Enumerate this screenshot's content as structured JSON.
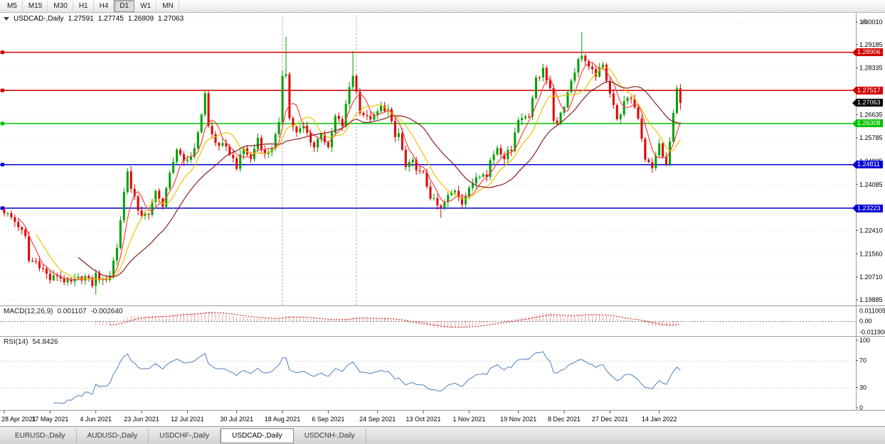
{
  "toolbar": {
    "periods": [
      {
        "label": "M5",
        "active": false
      },
      {
        "label": "M15",
        "active": false
      },
      {
        "label": "M30",
        "active": false
      },
      {
        "label": "H1",
        "active": false
      },
      {
        "label": "H4",
        "active": false
      },
      {
        "label": "D1",
        "active": true
      },
      {
        "label": "W1",
        "active": false
      },
      {
        "label": "MN",
        "active": false
      }
    ]
  },
  "header": {
    "symbol": "USDCAD-,Daily",
    "open": "1.27591",
    "high": "1.27745",
    "low": "1.26809",
    "close": "1.27063"
  },
  "indicators": {
    "macd": {
      "label": "MACD(12,26,9)",
      "value": "0.001107",
      "signal": "-0.002640",
      "axis": [
        "0.011009",
        "0.00",
        "-0.011908"
      ]
    },
    "rsi": {
      "label": "RSI(14)",
      "value": "54.8426",
      "axis": [
        "100",
        "70",
        "30",
        "0"
      ],
      "levels": [
        70,
        30
      ]
    }
  },
  "levels": [
    {
      "price": 1.28906,
      "label": "1.28906",
      "color": "#d40000",
      "kind": "resistance-line"
    },
    {
      "price": 1.27517,
      "label": "1.27517",
      "color": "#d40000",
      "kind": "resistance-line"
    },
    {
      "price": 1.26308,
      "label": "1.26308",
      "color": "#00c300",
      "kind": "support-line"
    },
    {
      "price": 1.24811,
      "label": "1.24811",
      "color": "#0000d4",
      "kind": "support-line"
    },
    {
      "price": 1.23223,
      "label": "1.23223",
      "color": "#0000d4",
      "kind": "support-line"
    }
  ],
  "current_price": {
    "price": 1.27063,
    "label": "1.27063",
    "color": "#000000"
  },
  "axis": {
    "price_labels": [
      "1.30010",
      "1.29185",
      "1.28335",
      "1.27485",
      "1.26635",
      "1.25785",
      "1.24935",
      "1.24085",
      "1.23235",
      "1.22410",
      "1.21560",
      "1.20710",
      "1.19885"
    ],
    "dates": [
      "28 Apr 2021",
      "17 May 2021",
      "4 Jun 2021",
      "23 Jun 2021",
      "12 Jul 2021",
      "30 Jul 2021",
      "18 Aug 2021",
      "6 Sep 2021",
      "24 Sep 2021",
      "13 Oct 2021",
      "1 Nov 2021",
      "19 Nov 2021",
      "8 Dec 2021",
      "27 Dec 2021",
      "14 Jan 2022"
    ],
    "date_indices": [
      0,
      13,
      26,
      39,
      52,
      66,
      79,
      92,
      106,
      119,
      132,
      146,
      159,
      172,
      186
    ]
  },
  "chart_data": {
    "type": "candlestick",
    "symbol": "USDCAD",
    "timeframe": "Daily",
    "x_range": [
      "28 Apr 2021",
      "21 Jan 2022"
    ],
    "y_range": [
      1.1968,
      1.3035
    ],
    "candle_count": 193,
    "up_color": "#00a000",
    "down_color": "#e00000",
    "ma": [
      {
        "period": 5,
        "color": "#ff4040"
      },
      {
        "period": 10,
        "color": "#e8c400"
      },
      {
        "period": 22,
        "color": "#8b2020"
      }
    ],
    "vlines": [
      79,
      100
    ],
    "anchors": [
      [
        0,
        1.231
      ],
      [
        2,
        1.2288
      ],
      [
        4,
        1.2258
      ],
      [
        6,
        1.2215
      ],
      [
        7,
        1.213
      ],
      [
        9,
        1.2128
      ],
      [
        11,
        1.21
      ],
      [
        13,
        1.2062
      ],
      [
        15,
        1.2078
      ],
      [
        17,
        1.2058
      ],
      [
        19,
        1.205
      ],
      [
        21,
        1.2065
      ],
      [
        23,
        1.2072
      ],
      [
        25,
        1.2045
      ],
      [
        26,
        1.208
      ],
      [
        28,
        1.2055
      ],
      [
        30,
        1.208
      ],
      [
        32,
        1.218
      ],
      [
        34,
        1.238
      ],
      [
        35,
        1.2465
      ],
      [
        36,
        1.239
      ],
      [
        38,
        1.232
      ],
      [
        39,
        1.23
      ],
      [
        41,
        1.229
      ],
      [
        43,
        1.2395
      ],
      [
        45,
        1.232
      ],
      [
        47,
        1.246
      ],
      [
        49,
        1.2525
      ],
      [
        51,
        1.2495
      ],
      [
        53,
        1.251
      ],
      [
        55,
        1.259
      ],
      [
        57,
        1.2745
      ],
      [
        58,
        1.262
      ],
      [
        60,
        1.256
      ],
      [
        62,
        1.255
      ],
      [
        64,
        1.2525
      ],
      [
        66,
        1.2475
      ],
      [
        68,
        1.254
      ],
      [
        70,
        1.25
      ],
      [
        72,
        1.258
      ],
      [
        74,
        1.2515
      ],
      [
        76,
        1.2545
      ],
      [
        78,
        1.2625
      ],
      [
        79,
        1.281
      ],
      [
        80,
        1.282
      ],
      [
        81,
        1.265
      ],
      [
        83,
        1.2595
      ],
      [
        85,
        1.262
      ],
      [
        88,
        1.2545
      ],
      [
        90,
        1.26
      ],
      [
        92,
        1.2535
      ],
      [
        94,
        1.2655
      ],
      [
        96,
        1.2625
      ],
      [
        98,
        1.2765
      ],
      [
        99,
        1.281
      ],
      [
        100,
        1.2745
      ],
      [
        101,
        1.268
      ],
      [
        103,
        1.265
      ],
      [
        105,
        1.2655
      ],
      [
        107,
        1.269
      ],
      [
        109,
        1.268
      ],
      [
        111,
        1.258
      ],
      [
        112,
        1.2595
      ],
      [
        114,
        1.247
      ],
      [
        116,
        1.249
      ],
      [
        118,
        1.245
      ],
      [
        119,
        1.2445
      ],
      [
        121,
        1.2365
      ],
      [
        123,
        1.233
      ],
      [
        124,
        1.232
      ],
      [
        126,
        1.2365
      ],
      [
        128,
        1.239
      ],
      [
        130,
        1.2345
      ],
      [
        132,
        1.2388
      ],
      [
        134,
        1.244
      ],
      [
        136,
        1.2456
      ],
      [
        137,
        1.2435
      ],
      [
        138,
        1.2497
      ],
      [
        140,
        1.2545
      ],
      [
        142,
        1.251
      ],
      [
        144,
        1.254
      ],
      [
        145,
        1.2605
      ],
      [
        146,
        1.2643
      ],
      [
        148,
        1.266
      ],
      [
        149,
        1.2665
      ],
      [
        151,
        1.279
      ],
      [
        152,
        1.28
      ],
      [
        153,
        1.284
      ],
      [
        155,
        1.275
      ],
      [
        156,
        1.2645
      ],
      [
        157,
        1.264
      ],
      [
        159,
        1.27
      ],
      [
        161,
        1.279
      ],
      [
        163,
        1.286
      ],
      [
        164,
        1.2885
      ],
      [
        166,
        1.283
      ],
      [
        168,
        1.281
      ],
      [
        170,
        1.284
      ],
      [
        171,
        1.2795
      ],
      [
        173,
        1.27
      ],
      [
        174,
        1.264
      ],
      [
        176,
        1.2705
      ],
      [
        178,
        1.2725
      ],
      [
        180,
        1.2655
      ],
      [
        182,
        1.2505
      ],
      [
        184,
        1.2465
      ],
      [
        185,
        1.252
      ],
      [
        186,
        1.2552
      ],
      [
        187,
        1.251
      ],
      [
        188,
        1.248
      ],
      [
        189,
        1.256
      ],
      [
        190,
        1.268
      ],
      [
        191,
        1.27591
      ],
      [
        192,
        1.27063
      ]
    ],
    "wick_overrides": {
      "26": {
        "low": 1.2007
      },
      "80": {
        "high": 1.2948
      },
      "99": {
        "high": 1.2896
      },
      "124": {
        "low": 1.2287
      },
      "164": {
        "high": 1.2964
      }
    },
    "last_candle": {
      "open": 1.27591,
      "high": 1.27745,
      "low": 1.26809,
      "close": 1.27063
    }
  },
  "tabs": [
    {
      "label": "EURUSD-,Daily",
      "active": false
    },
    {
      "label": "AUDUSD-,Daily",
      "active": false
    },
    {
      "label": "USDCHF-,Daily",
      "active": false
    },
    {
      "label": "USDCAD-,Daily",
      "active": true
    },
    {
      "label": "USDCNH-,Daily",
      "active": false
    }
  ]
}
